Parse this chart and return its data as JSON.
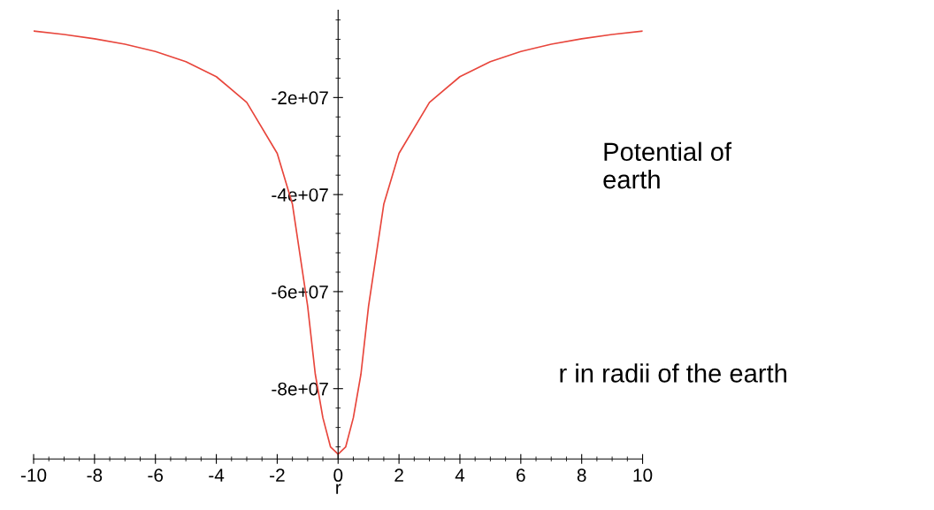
{
  "chart_data": {
    "type": "line",
    "x": [
      -10,
      -9,
      -8,
      -7,
      -6,
      -5,
      -4,
      -3,
      -2,
      -1.5,
      -1,
      -0.75,
      -0.5,
      -0.25,
      0,
      0.25,
      0.5,
      0.75,
      1,
      1.5,
      2,
      3,
      4,
      5,
      6,
      7,
      8,
      9,
      10
    ],
    "series": [
      {
        "color": "#e8463c",
        "values": [
          -6300000,
          -7000000,
          -7900000,
          -9000000,
          -10500000,
          -12600000,
          -15700000,
          -21000000,
          -31500000,
          -42000000,
          -63000000,
          -77000000,
          -86000000,
          -92000000,
          -93500000,
          -92000000,
          -86000000,
          -77000000,
          -63000000,
          -42000000,
          -31500000,
          -21000000,
          -15700000,
          -12600000,
          -10500000,
          -9000000,
          -7900000,
          -7000000,
          -6300000
        ]
      }
    ],
    "xlabel": "r",
    "annotations": [
      "Potential of\nearth",
      "r in radii of the earth"
    ],
    "xlim": [
      -10,
      10
    ],
    "xticks": [
      -10,
      -8,
      -6,
      -4,
      -2,
      0,
      2,
      4,
      6,
      8,
      10
    ],
    "ylim": [
      -94500000,
      -2000000
    ],
    "yticks": [
      {
        "value": -20000000,
        "label": "-2e+07"
      },
      {
        "value": -40000000,
        "label": "-4e+07"
      },
      {
        "value": -60000000,
        "label": "-6e+07"
      },
      {
        "value": -80000000,
        "label": "-8e+07"
      }
    ],
    "grid": false,
    "marker": "none",
    "line_style": "solid"
  }
}
